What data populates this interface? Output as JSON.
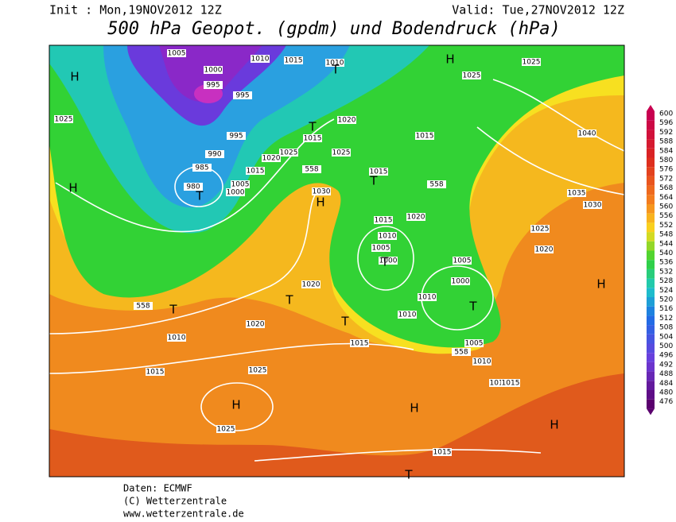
{
  "header": {
    "init": "Init : Mon,19NOV2012 12Z",
    "valid": "Valid: Tue,27NOV2012 12Z",
    "title": "500 hPa Geopot. (gpdm) und Bodendruck (hPa)"
  },
  "legend": {
    "ticks": [
      600,
      596,
      592,
      588,
      584,
      580,
      576,
      572,
      568,
      564,
      560,
      556,
      552,
      548,
      544,
      540,
      536,
      532,
      528,
      524,
      520,
      516,
      512,
      508,
      504,
      500,
      496,
      492,
      488,
      484,
      480,
      476
    ]
  },
  "map": {
    "labels": [
      "1005",
      "1010",
      "1015",
      "1010",
      "1000",
      "995",
      "995",
      "1025",
      "1020",
      "1015",
      "1015",
      "995",
      "1025",
      "1020",
      "1025",
      "1015",
      "990",
      "985",
      "558",
      "1015",
      "1005",
      "1000",
      "980",
      "1030",
      "558",
      "1035",
      "1030",
      "1020",
      "1015",
      "1025",
      "1010",
      "1005",
      "1020",
      "1000",
      "1005",
      "1000",
      "1020",
      "1010",
      "1010",
      "1010",
      "1020",
      "1015",
      "1005",
      "1010",
      "1015",
      "1025",
      "1010",
      "1015",
      "1025",
      "1015",
      "1040",
      "1025",
      "1025",
      "558",
      "558"
    ],
    "pressure_centers": [
      "H",
      "H",
      "H",
      "H",
      "H",
      "H",
      "H",
      "H",
      "T",
      "T",
      "T",
      "T",
      "T",
      "T",
      "T",
      "T",
      "T",
      "T"
    ]
  },
  "footer": {
    "lines": [
      "Daten: ECMWF",
      "(C) Wetterzentrale",
      "www.wetterzentrale.de"
    ]
  }
}
